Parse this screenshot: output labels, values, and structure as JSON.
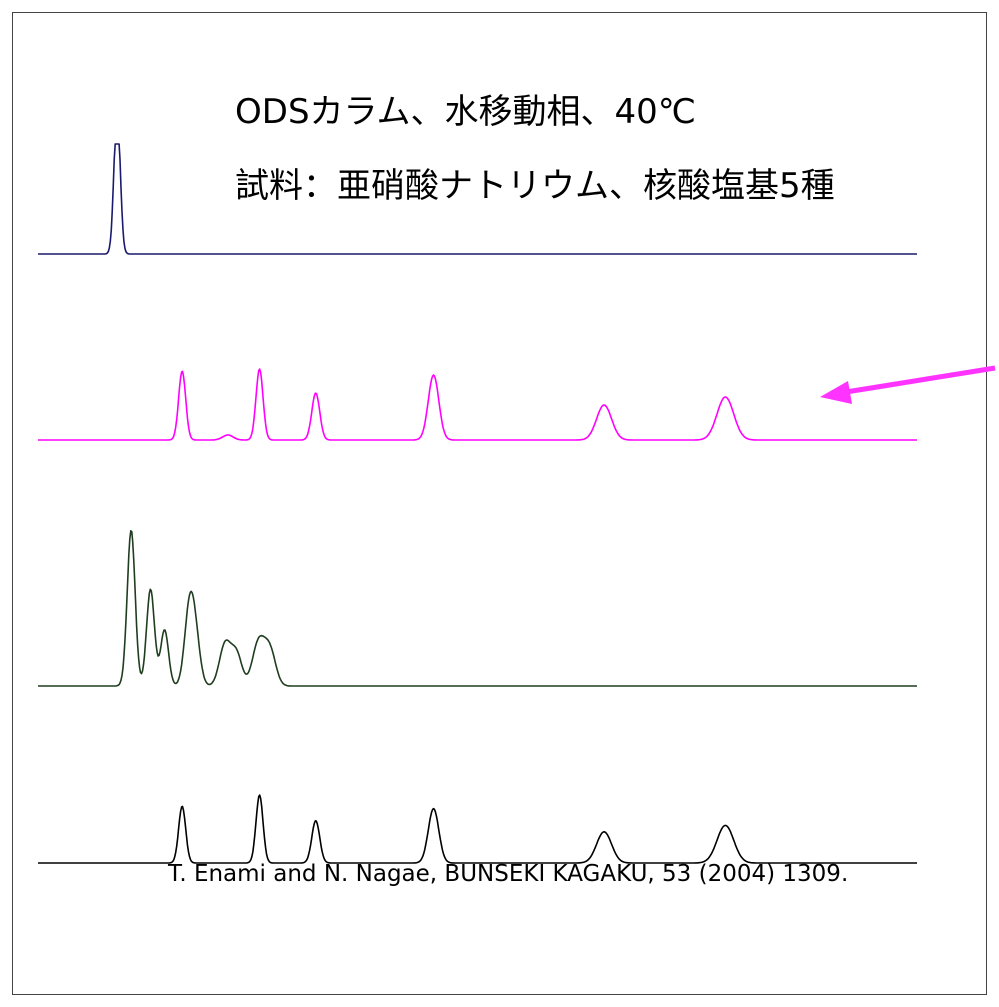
{
  "title": "ODSカラム、水移動相、40℃",
  "subtitle": "試料：亜硝酸ナトリウム、核酸塩基5種",
  "citation": "T. Enami and N. Nagae, BUNSEKI KAGAKU, 53 (2004) 1309.",
  "colors": {
    "trace1": "#1a1a6e",
    "trace2": "#ff00ff",
    "trace3": "#1f3d1f",
    "trace4": "#000000",
    "arrow": "#ff33ff",
    "frame": "#444444"
  },
  "chart_data": {
    "type": "line",
    "title": "ODSカラム、水移動相、40℃",
    "xlabel": "",
    "ylabel": "",
    "xlim": [
      0,
      100
    ],
    "ylim": [
      0,
      1
    ],
    "grid": false,
    "legend": "none",
    "annotations": [
      {
        "type": "arrow",
        "points_to_series": 1
      }
    ],
    "series": [
      {
        "peaks": [
          {
            "x": 9.0,
            "height": 1.0,
            "width": 0.35,
            "flat_top": true
          }
        ]
      },
      {
        "peaks": [
          {
            "x": 16.4,
            "height": 0.69,
            "width": 0.4
          },
          {
            "x": 21.6,
            "height": 0.05,
            "width": 0.6
          },
          {
            "x": 25.2,
            "height": 0.71,
            "width": 0.4
          },
          {
            "x": 31.6,
            "height": 0.47,
            "width": 0.45
          },
          {
            "x": 45.0,
            "height": 0.65,
            "width": 0.6
          },
          {
            "x": 64.4,
            "height": 0.35,
            "width": 0.85
          },
          {
            "x": 78.2,
            "height": 0.43,
            "width": 0.95
          }
        ]
      },
      {
        "peaks": [
          {
            "x": 10.6,
            "height": 1.0,
            "width": 0.45
          },
          {
            "x": 12.8,
            "height": 0.62,
            "width": 0.45
          },
          {
            "x": 14.4,
            "height": 0.36,
            "width": 0.45
          },
          {
            "x": 17.2,
            "height": 0.45,
            "width": 0.55
          },
          {
            "x": 17.9,
            "height": 0.28,
            "width": 0.55
          },
          {
            "x": 21.3,
            "height": 0.27,
            "width": 0.65
          },
          {
            "x": 22.6,
            "height": 0.2,
            "width": 0.6
          },
          {
            "x": 25.1,
            "height": 0.28,
            "width": 0.7
          },
          {
            "x": 26.4,
            "height": 0.22,
            "width": 0.65
          }
        ]
      },
      {
        "peaks": [
          {
            "x": 16.4,
            "height": 0.71,
            "width": 0.4
          },
          {
            "x": 25.2,
            "height": 0.85,
            "width": 0.4
          },
          {
            "x": 31.6,
            "height": 0.53,
            "width": 0.45
          },
          {
            "x": 45.0,
            "height": 0.68,
            "width": 0.6
          },
          {
            "x": 64.4,
            "height": 0.39,
            "width": 0.85
          },
          {
            "x": 78.2,
            "height": 0.47,
            "width": 0.95
          }
        ]
      }
    ]
  }
}
